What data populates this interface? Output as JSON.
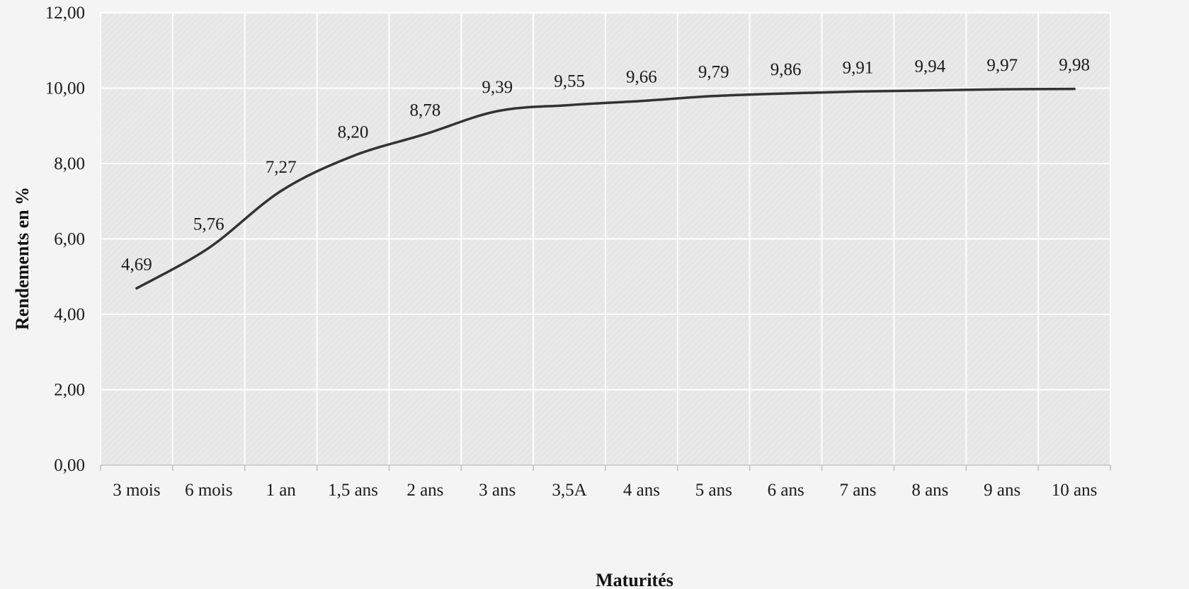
{
  "chart_data": {
    "type": "line",
    "title": "",
    "xlabel": "Maturités",
    "ylabel": "Rendements en %",
    "categories": [
      "3 mois",
      "6 mois",
      "1 an",
      "1,5 ans",
      "2 ans",
      "3 ans",
      "3,5A",
      "4 ans",
      "5 ans",
      "6 ans",
      "7 ans",
      "8 ans",
      "9 ans",
      "10 ans"
    ],
    "values": [
      4.69,
      5.76,
      7.27,
      8.2,
      8.78,
      9.39,
      9.55,
      9.66,
      9.79,
      9.86,
      9.91,
      9.94,
      9.97,
      9.98
    ],
    "data_labels": [
      "4,69",
      "5,76",
      "7,27",
      "8,20",
      "8,78",
      "9,39",
      "9,55",
      "9,66",
      "9,79",
      "9,86",
      "9,91",
      "9,94",
      "9,97",
      "9,98"
    ],
    "ylim": [
      0,
      12
    ],
    "yticks": [
      0,
      2,
      4,
      6,
      8,
      10,
      12
    ],
    "ytick_labels": [
      "0,00",
      "2,00",
      "4,00",
      "6,00",
      "8,00",
      "10,00",
      "12,00"
    ],
    "grid": true,
    "legend": "none",
    "line_color": "#333333",
    "plot_background": "#e9e9e9",
    "grid_color": "#ffffff"
  }
}
